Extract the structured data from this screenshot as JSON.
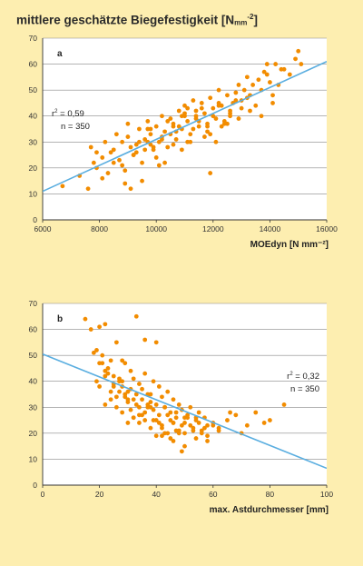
{
  "page": {
    "title_prefix": "mittlere geschätzte Biegefestigkeit [N",
    "title_unit_sub": "mm",
    "title_unit_sup": "-2",
    "title_suffix": "]"
  },
  "colors": {
    "point": "#f28c00",
    "regression": "#5aaee0",
    "grid": "#888888",
    "plot_bg": "#ffffff",
    "page_bg": "#fdeeb0"
  },
  "chart_data": [
    {
      "type": "scatter",
      "panel_label": "a",
      "xlabel": "MOEdyn [N mm⁻²]",
      "ylabel": "",
      "xlim": [
        6000,
        16000
      ],
      "ylim": [
        0,
        70
      ],
      "x_ticks": [
        6000,
        8000,
        10000,
        12000,
        14000,
        16000
      ],
      "y_ticks": [
        0,
        10,
        20,
        30,
        40,
        50,
        60,
        70
      ],
      "grid_y": true,
      "stats": {
        "r2_prefix": "r",
        "r2_sup": "2",
        "r2_value": " = 0,59",
        "n": "n = 350"
      },
      "regression": {
        "x": [
          6000,
          16000
        ],
        "y": [
          11,
          61
        ]
      },
      "points": {
        "x": [
          6700,
          7300,
          7600,
          7700,
          7800,
          7900,
          8100,
          8300,
          8500,
          8700,
          8800,
          8900,
          9000,
          9100,
          9200,
          9300,
          9400,
          9500,
          9600,
          9700,
          9800,
          9900,
          10000,
          10100,
          10200,
          10300,
          10400,
          10500,
          10600,
          10700,
          10800,
          10900,
          11000,
          11100,
          11200,
          11300,
          11400,
          11500,
          11600,
          11700,
          11800,
          11900,
          12000,
          12100,
          12200,
          12300,
          12400,
          12500,
          12600,
          12700,
          12800,
          12900,
          13000,
          13100,
          13200,
          13300,
          13400,
          13500,
          13600,
          13700,
          13800,
          13900,
          14000,
          14100,
          14200,
          14300,
          14500,
          14700,
          14900,
          15000,
          15100,
          7900,
          8200,
          8400,
          8600,
          8800,
          9000,
          9200,
          9400,
          9600,
          9800,
          10000,
          10200,
          10400,
          10600,
          10800,
          11000,
          11200,
          11400,
          11600,
          11800,
          12000,
          12200,
          12400,
          12600,
          12800,
          13000,
          13200,
          8100,
          8500,
          8900,
          9300,
          9700,
          10100,
          10500,
          10900,
          11300,
          11700,
          12100,
          12500,
          12900,
          13300,
          13700,
          14100,
          9500,
          9900,
          10300,
          10700,
          11100,
          11500,
          11900,
          12300,
          9100,
          9700,
          10900,
          11100,
          11900,
          13900,
          14400,
          9800,
          10200,
          10600,
          11000,
          11400,
          11800,
          12200,
          12600
        ],
        "y": [
          13,
          17,
          12,
          28,
          22,
          26,
          24,
          18,
          27,
          23,
          30,
          19,
          32,
          28,
          25,
          29,
          35,
          22,
          31,
          38,
          33,
          27,
          36,
          30,
          40,
          34,
          28,
          39,
          37,
          31,
          42,
          35,
          44,
          38,
          33,
          46,
          40,
          36,
          45,
          41,
          34,
          47,
          43,
          39,
          50,
          44,
          37,
          48,
          42,
          45,
          49,
          52,
          46,
          50,
          55,
          48,
          52,
          44,
          54,
          50,
          57,
          56,
          53,
          45,
          60,
          52,
          58,
          56,
          62,
          65,
          60,
          20,
          30,
          26,
          33,
          21,
          37,
          25,
          30,
          27,
          35,
          24,
          32,
          38,
          29,
          36,
          41,
          30,
          39,
          43,
          36,
          40,
          44,
          38,
          41,
          46,
          43,
          47,
          16,
          22,
          14,
          26,
          30,
          21,
          33,
          27,
          35,
          32,
          30,
          37,
          39,
          42,
          40,
          48,
          15,
          28,
          22,
          34,
          30,
          38,
          33,
          36,
          12,
          35,
          40,
          43,
          18,
          60,
          58,
          29,
          31,
          36,
          40,
          42,
          37,
          45,
          40
        ]
      }
    },
    {
      "type": "scatter",
      "panel_label": "b",
      "xlabel": "max. Astdurchmesser [mm]",
      "ylabel": "",
      "xlim": [
        0,
        100
      ],
      "ylim": [
        0,
        70
      ],
      "x_ticks": [
        0,
        20,
        40,
        60,
        80,
        100
      ],
      "y_ticks": [
        0,
        10,
        20,
        30,
        40,
        50,
        60,
        70
      ],
      "grid_y": true,
      "stats": {
        "r2_prefix": "r",
        "r2_sup": "2",
        "r2_value": " = 0,32",
        "n": "n = 350"
      },
      "regression": {
        "x": [
          0,
          100
        ],
        "y": [
          50.5,
          6.5
        ]
      },
      "points": {
        "x": [
          15,
          17,
          19,
          20,
          21,
          22,
          23,
          24,
          25,
          26,
          27,
          28,
          29,
          30,
          31,
          32,
          33,
          34,
          35,
          36,
          37,
          38,
          39,
          40,
          41,
          42,
          43,
          44,
          45,
          46,
          47,
          48,
          49,
          50,
          51,
          52,
          53,
          54,
          55,
          56,
          57,
          58,
          60,
          62,
          65,
          68,
          70,
          72,
          75,
          78,
          80,
          85,
          18,
          20,
          22,
          24,
          26,
          28,
          30,
          32,
          34,
          36,
          38,
          40,
          42,
          44,
          46,
          48,
          50,
          52,
          54,
          56,
          58,
          60,
          19,
          21,
          23,
          25,
          27,
          29,
          31,
          33,
          35,
          37,
          39,
          41,
          43,
          45,
          47,
          49,
          51,
          53,
          55,
          57,
          22,
          24,
          26,
          28,
          30,
          32,
          34,
          36,
          38,
          40,
          42,
          44,
          46,
          48,
          50,
          25,
          27,
          29,
          31,
          33,
          35,
          37,
          39,
          41,
          43,
          45,
          47,
          49,
          20,
          22,
          28,
          32,
          36,
          40,
          30,
          34,
          38,
          42,
          46,
          50,
          54,
          58,
          62,
          66
        ],
        "y": [
          64,
          60,
          52,
          61,
          50,
          62,
          45,
          48,
          42,
          55,
          40,
          38,
          47,
          36,
          44,
          41,
          65,
          39,
          37,
          43,
          35,
          32,
          40,
          31,
          38,
          34,
          30,
          36,
          28,
          33,
          26,
          31,
          29,
          24,
          27,
          30,
          22,
          25,
          28,
          20,
          26,
          23,
          24,
          22,
          25,
          27,
          20,
          23,
          28,
          24,
          25,
          31,
          51,
          38,
          44,
          36,
          34,
          40,
          32,
          33,
          30,
          28,
          30,
          25,
          22,
          27,
          24,
          20,
          26,
          23,
          18,
          21,
          19,
          23,
          40,
          47,
          43,
          38,
          41,
          35,
          37,
          35,
          33,
          31,
          29,
          27,
          30,
          25,
          28,
          23,
          26,
          21,
          24,
          22,
          31,
          33,
          30,
          28,
          24,
          26,
          27,
          25,
          22,
          19,
          23,
          20,
          17,
          21,
          15,
          39,
          36,
          34,
          29,
          31,
          27,
          30,
          25,
          24,
          20,
          18,
          21,
          13,
          47,
          42,
          48,
          26,
          56,
          55,
          33,
          24,
          35,
          19,
          24,
          20,
          26,
          17,
          21,
          28
        ]
      }
    }
  ]
}
